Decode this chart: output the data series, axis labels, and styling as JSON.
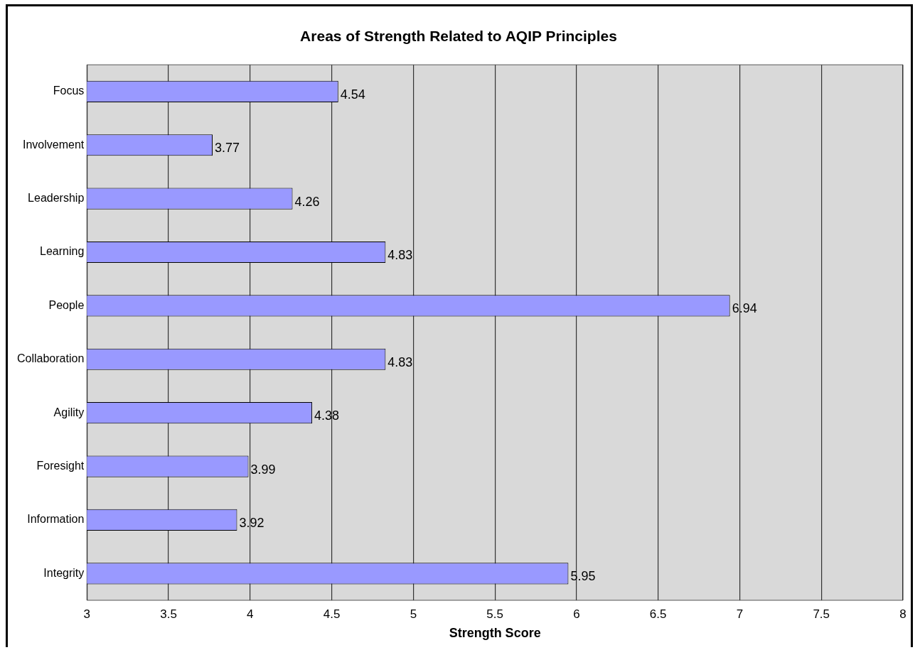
{
  "chart_data": {
    "type": "bar",
    "orientation": "horizontal",
    "title": "Areas of Strength Related to AQIP Principles",
    "xlabel": "Strength Score",
    "categories": [
      "Focus",
      "Involvement",
      "Leadership",
      "Learning",
      "People",
      "Collaboration",
      "Agility",
      "Foresight",
      "Information",
      "Integrity"
    ],
    "values": [
      4.54,
      3.77,
      4.26,
      4.83,
      6.94,
      4.83,
      4.38,
      3.99,
      3.92,
      5.95
    ],
    "color": "#9999ff",
    "data_labels": true,
    "xlim": [
      3,
      8
    ],
    "xticks": [
      3,
      3.5,
      4,
      4.5,
      5,
      5.5,
      6,
      6.5,
      7,
      7.5,
      8
    ],
    "grid": "x"
  }
}
